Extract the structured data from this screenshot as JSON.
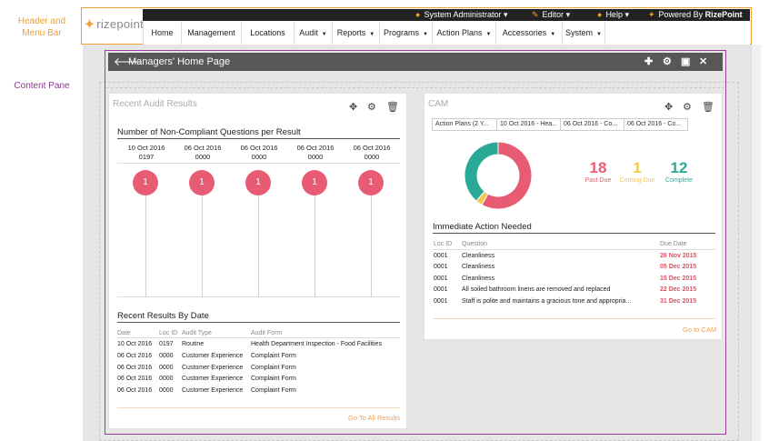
{
  "annotations": {
    "header_label": "Header and Menu Bar",
    "content_label": "Content Pane"
  },
  "header": {
    "logo": "rizepoint",
    "user": "System Administrator",
    "editor": "Editor",
    "help": "Help",
    "powered_prefix": "Powered By ",
    "powered_brand": "RizePoint",
    "menu": [
      {
        "label": "Home"
      },
      {
        "label": "Management"
      },
      {
        "label": "Locations"
      },
      {
        "label": "Audit"
      },
      {
        "label": "Reports"
      },
      {
        "label": "Programs"
      },
      {
        "label": "Action Plans"
      },
      {
        "label": "Accessories"
      },
      {
        "label": "System"
      }
    ]
  },
  "page": {
    "title": "Managers' Home Page"
  },
  "recent_audit": {
    "title": "Recent Audit Results",
    "chart_title": "Number of Non-Compliant Questions per Result",
    "columns": [
      {
        "date": "10 Oct 2016",
        "loc": "0197",
        "count": "1"
      },
      {
        "date": "06 Oct 2016",
        "loc": "0000",
        "count": "1"
      },
      {
        "date": "06 Oct 2016",
        "loc": "0000",
        "count": "1"
      },
      {
        "date": "06 Oct 2016",
        "loc": "0000",
        "count": "1"
      },
      {
        "date": "06 Oct 2016",
        "loc": "0000",
        "count": "1"
      }
    ],
    "results_title": "Recent Results By Date",
    "headers": [
      "Date",
      "Loc ID",
      "Audit Type",
      "Audit Form"
    ],
    "rows": [
      [
        "10 Oct 2016",
        "0197",
        "Routine",
        "Health Department Inspection - Food Facilities"
      ],
      [
        "06 Oct 2016",
        "0000",
        "Customer Experience",
        "Complaint Form"
      ],
      [
        "06 Oct 2016",
        "0000",
        "Customer Experience",
        "Complaint Form"
      ],
      [
        "06 Oct 2016",
        "0000",
        "Customer Experience",
        "Complaint Form"
      ],
      [
        "06 Oct 2016",
        "0000",
        "Customer Experience",
        "Complaint Form"
      ]
    ],
    "link": "Go To All Results"
  },
  "cam": {
    "title": "CAM",
    "tabs": [
      "Action Plans (2 Y...",
      "10 Oct 2016 - Hea...",
      "06 Oct 2016 - Co...",
      "06 Oct 2016 - Co..."
    ],
    "stats": [
      {
        "value": "18",
        "label": "Past Due",
        "color": "#e85c73"
      },
      {
        "value": "1",
        "label": "Coming Due",
        "color": "#f5c84c"
      },
      {
        "value": "12",
        "label": "Complete",
        "color": "#2aaa96"
      }
    ],
    "section_title": "Immediate Action Needed",
    "headers": [
      "Loc ID",
      "Question",
      "Due Date"
    ],
    "rows": [
      [
        "0001",
        "Cleanliness",
        "26 Nov 2015"
      ],
      [
        "0001",
        "Cleanliness",
        "05 Dec 2015"
      ],
      [
        "0001",
        "Cleanliness",
        "15 Dec 2015"
      ],
      [
        "0001",
        "All soiled bathroom linens are removed and replaced",
        "22 Dec 2015"
      ],
      [
        "0001",
        "Staff is polite and maintains a gracious tone and appropria...",
        "31 Dec 2015"
      ]
    ],
    "link": "Go to CAM"
  },
  "colors": {
    "accent": "#f0a030",
    "content_border": "#9b3f9b",
    "past_due": "#e85c73",
    "coming_due": "#f5c84c",
    "complete": "#2aaa96"
  },
  "icons": {
    "back": "arrow-left-icon",
    "add": "plus-icon",
    "settings": "gear-icon",
    "save": "save-icon",
    "close": "close-icon",
    "move": "move-icon",
    "delete": "trash-icon"
  }
}
